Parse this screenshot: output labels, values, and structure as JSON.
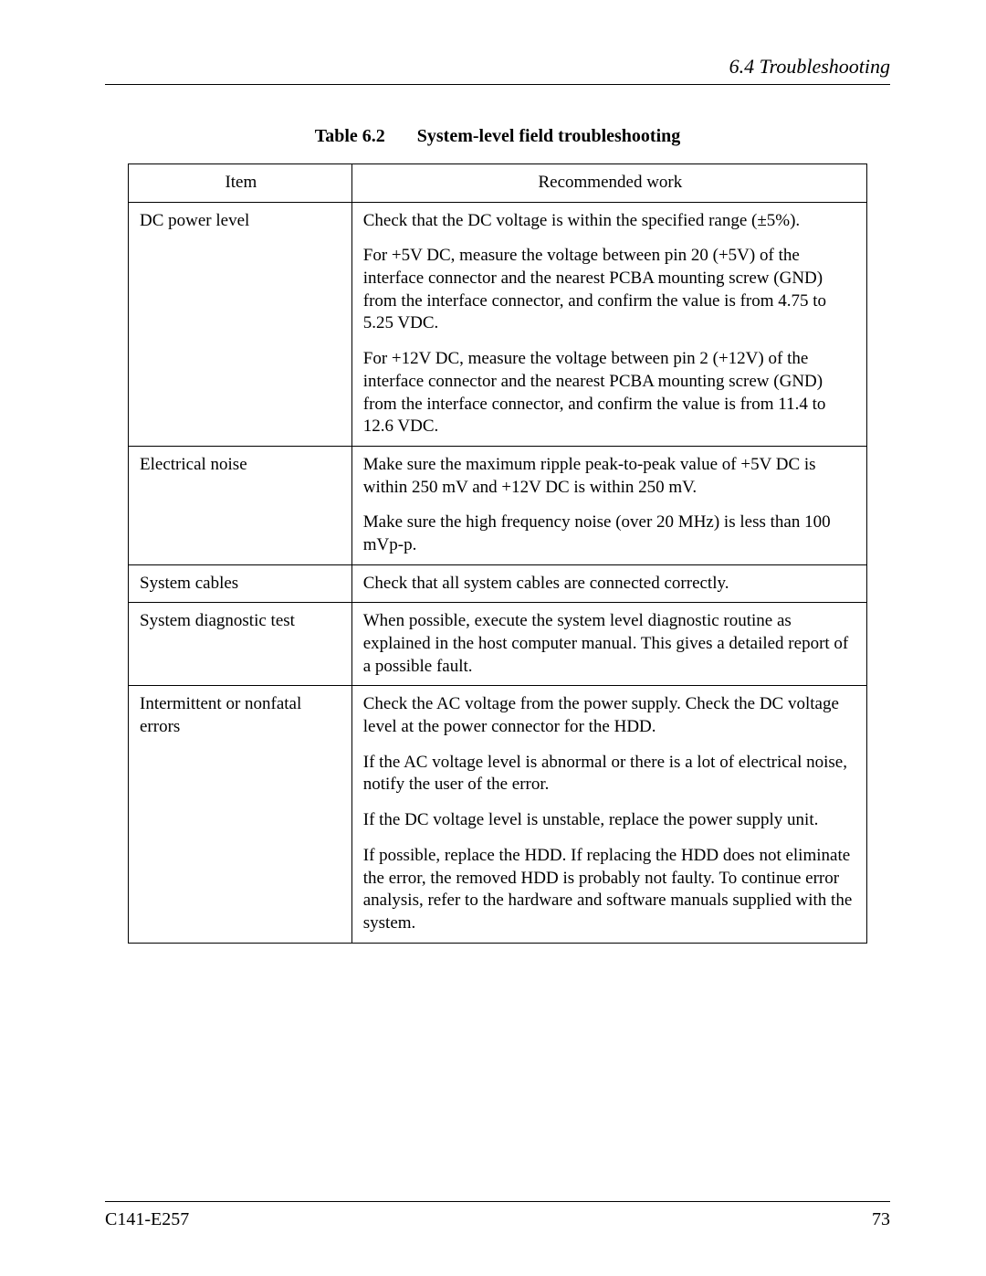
{
  "header": {
    "section": "6.4  Troubleshooting"
  },
  "table": {
    "caption_number": "Table 6.2",
    "caption_title": "System-level field troubleshooting",
    "col_item": "Item",
    "col_work": "Recommended work",
    "rows": [
      {
        "item": "DC power level",
        "work": [
          "Check that the DC voltage is within the specified range (±5%).",
          "For +5V DC, measure the voltage between pin 20 (+5V) of the interface connector and the nearest PCBA mounting screw (GND) from the interface connector, and confirm the value is from 4.75 to 5.25 VDC.",
          "For +12V DC, measure the voltage between pin 2 (+12V) of the interface connector and the nearest PCBA mounting screw (GND) from the interface connector, and confirm the value is from 11.4 to 12.6 VDC."
        ]
      },
      {
        "item": "Electrical noise",
        "work": [
          "Make sure the maximum ripple peak-to-peak value of +5V DC is within 250 mV and +12V DC is within 250 mV.",
          "Make sure the high frequency noise (over 20 MHz) is less than 100 mVp-p."
        ]
      },
      {
        "item": "System cables",
        "work": [
          "Check that all system cables are connected correctly."
        ]
      },
      {
        "item": "System diagnostic test",
        "work": [
          "When possible, execute the system level diagnostic routine as explained in the host computer manual.  This gives a detailed report of a possible fault."
        ]
      },
      {
        "item": "Intermittent or nonfatal errors",
        "work": [
          "Check the AC voltage from the power supply.  Check the DC voltage level at the power connector for the HDD.",
          "If the AC voltage level is abnormal or there is a lot of electrical noise, notify the user of the error.",
          "If the DC voltage level is unstable, replace the power supply unit.",
          "If possible, replace the HDD.  If replacing the HDD does not eliminate the error, the removed HDD is probably not faulty.  To continue error analysis, refer to the hardware and software manuals supplied with the system."
        ]
      }
    ]
  },
  "footer": {
    "doc_id": "C141-E257",
    "page_no": "73"
  }
}
